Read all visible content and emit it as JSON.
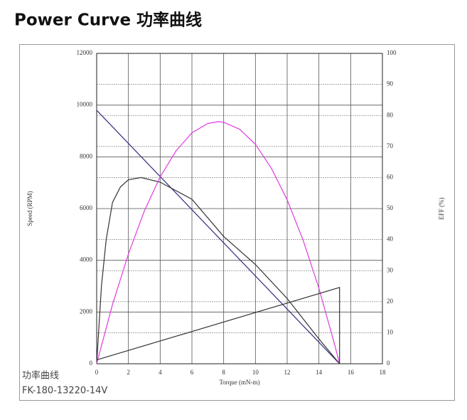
{
  "header": {
    "title": "Power Curve 功率曲线"
  },
  "chart_data": {
    "type": "line",
    "xlabel": "Torque (mN-m)",
    "ylabel": "Speed (RPM)",
    "y2label": "EFF (%)",
    "xlim": [
      0,
      18
    ],
    "xticks": [
      0,
      2,
      4,
      6,
      8,
      10,
      12,
      14,
      16,
      18
    ],
    "ylim": [
      0,
      12000
    ],
    "yticks": [
      0,
      2000,
      4000,
      6000,
      8000,
      10000,
      12000
    ],
    "y2lim": [
      0,
      100
    ],
    "y2ticks": [
      0,
      10,
      20,
      30,
      40,
      50,
      60,
      70,
      80,
      90,
      100
    ],
    "grid": true,
    "series": [
      {
        "color": "#2e2e80",
        "x": [
          0,
          15.3
        ],
        "values": [
          9800,
          0
        ]
      },
      {
        "color": "#333333",
        "axis": "y2",
        "x": [
          0,
          0.3,
          0.6,
          1,
          1.5,
          2,
          2.8,
          4,
          6,
          8,
          10,
          12,
          14,
          15.3
        ],
        "values": [
          0,
          25,
          40,
          52,
          57,
          59.3,
          60,
          58.5,
          53,
          41,
          32,
          21,
          8,
          0
        ]
      },
      {
        "color": "#e03ce0",
        "axis": "y2",
        "x": [
          0,
          1,
          2,
          3,
          4,
          5,
          6,
          7,
          7.65,
          8,
          9,
          10,
          11,
          12,
          13,
          14,
          15,
          15.3
        ],
        "values": [
          0,
          19.1,
          35.4,
          49.2,
          60.2,
          68.6,
          74.4,
          77.4,
          78,
          77.8,
          75.6,
          70.7,
          63,
          52.8,
          39.9,
          24.3,
          6,
          0
        ]
      },
      {
        "color": "#333333",
        "x": [
          0,
          15.3,
          15.3
        ],
        "values": [
          150,
          2950,
          0
        ]
      }
    ]
  },
  "footer": {
    "label": "功率曲线",
    "model": "FK-180-13220-14V"
  }
}
